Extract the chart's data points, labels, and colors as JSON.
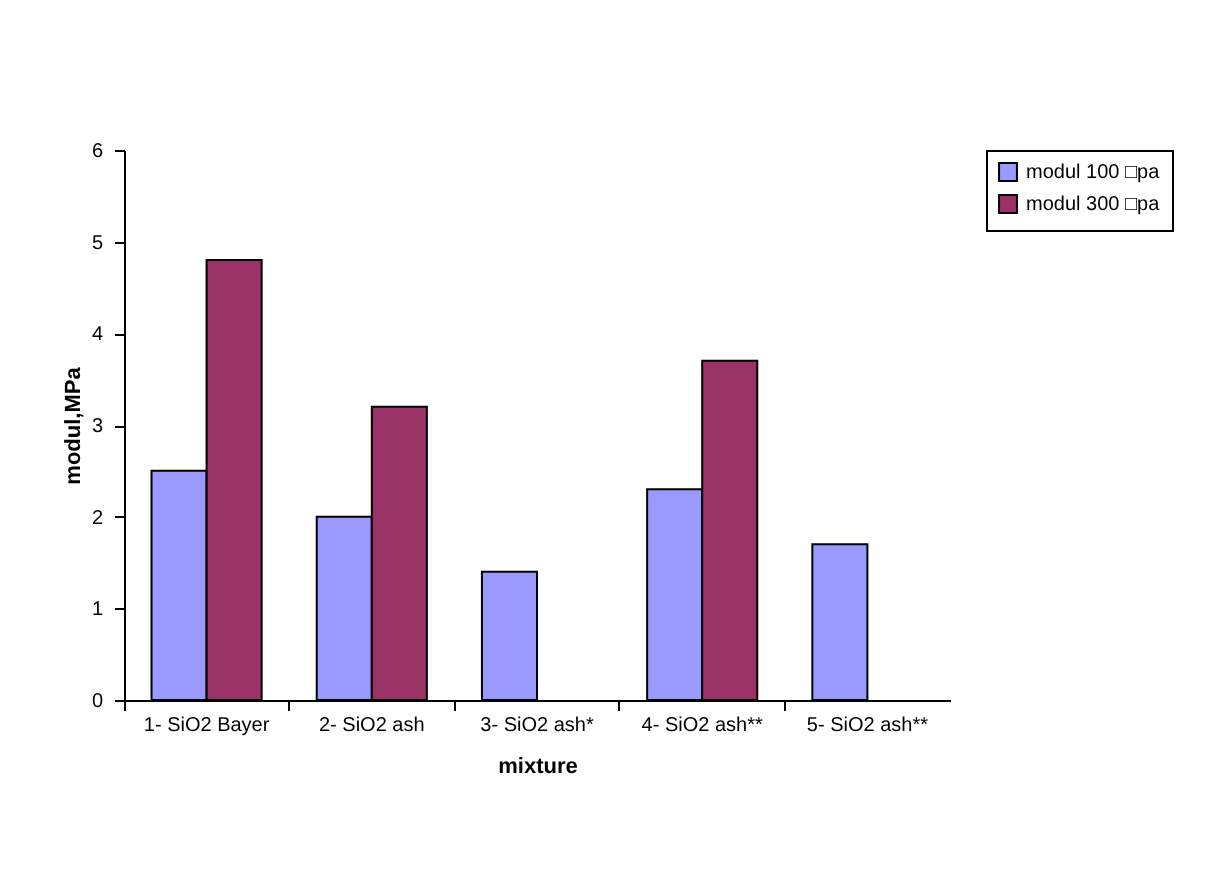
{
  "chart_data": {
    "type": "bar",
    "xlabel": "mixture",
    "ylabel": "modul,MPa",
    "categories": [
      "1- SiO2 Bayer",
      "2- SiO2 ash",
      "3- SiO2 ash*",
      "4- SiO2 ash**",
      "5- SiO2 ash**"
    ],
    "series": [
      {
        "name": "modul 100 □pa",
        "color": "#9999ff",
        "values": [
          2.5,
          2.0,
          1.4,
          2.3,
          1.7
        ]
      },
      {
        "name": "modul 300 □pa",
        "color": "#993366",
        "values": [
          4.8,
          3.2,
          null,
          3.7,
          null
        ]
      }
    ],
    "ylim": [
      0,
      6
    ],
    "yticks": [
      0,
      1,
      2,
      3,
      4,
      5,
      6
    ],
    "grid": false,
    "legend": "right"
  }
}
